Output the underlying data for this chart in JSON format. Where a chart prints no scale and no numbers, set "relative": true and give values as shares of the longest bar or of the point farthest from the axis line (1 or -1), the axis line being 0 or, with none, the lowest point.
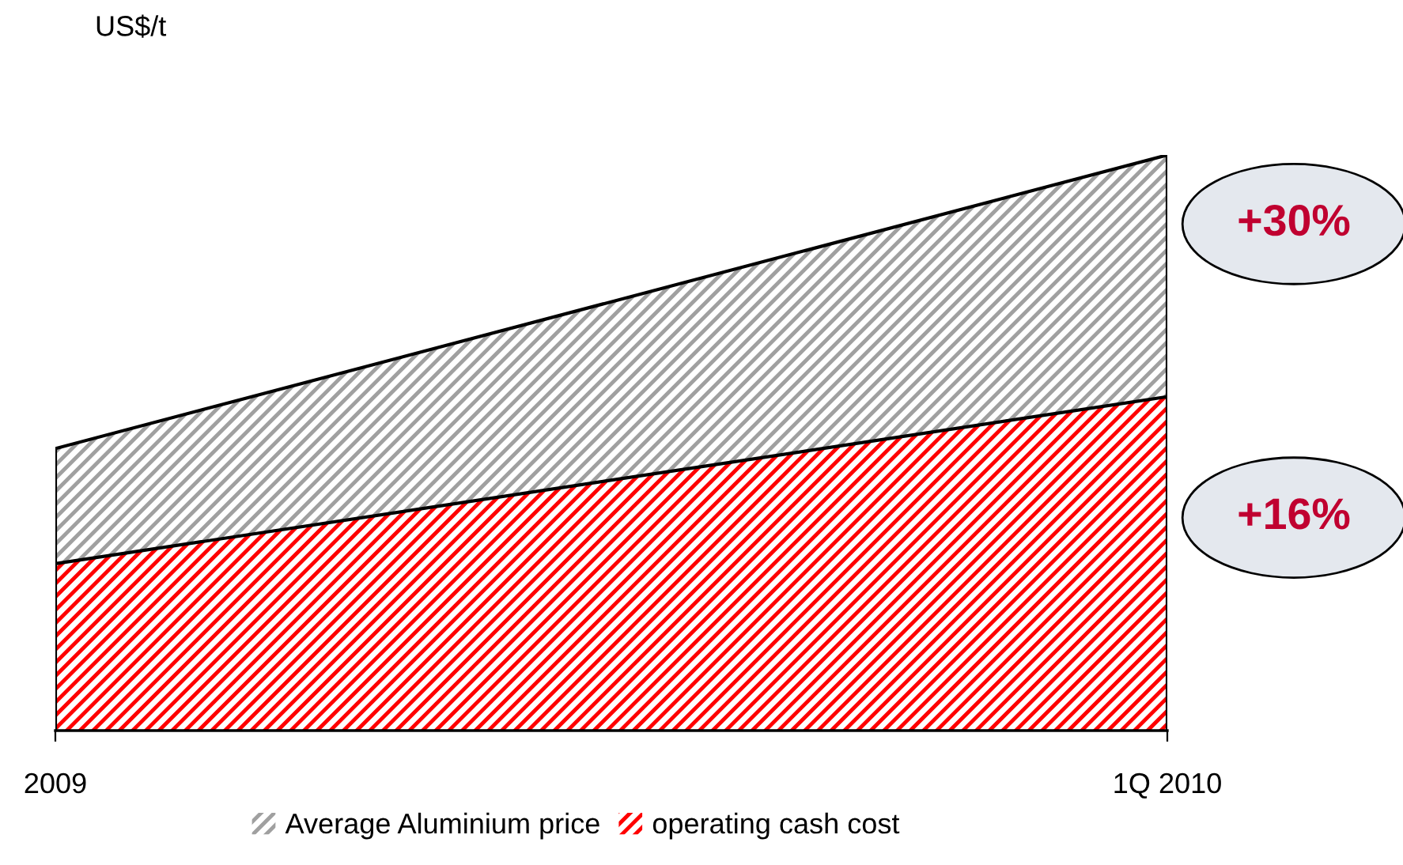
{
  "chart_data": {
    "type": "area",
    "relative": true,
    "ylabel": "US$/t",
    "categories": [
      "2009",
      "1Q 2010"
    ],
    "series": [
      {
        "name": "Average Aluminium price",
        "color": "#a0a0a0",
        "values": [
          0.49,
          1
        ]
      },
      {
        "name": "operating cash cost",
        "color": "#ff0000",
        "values": [
          0.29,
          0.58
        ]
      }
    ],
    "annotations": [
      "+30%",
      "+16%"
    ],
    "legend": "bottom",
    "grid": false
  }
}
